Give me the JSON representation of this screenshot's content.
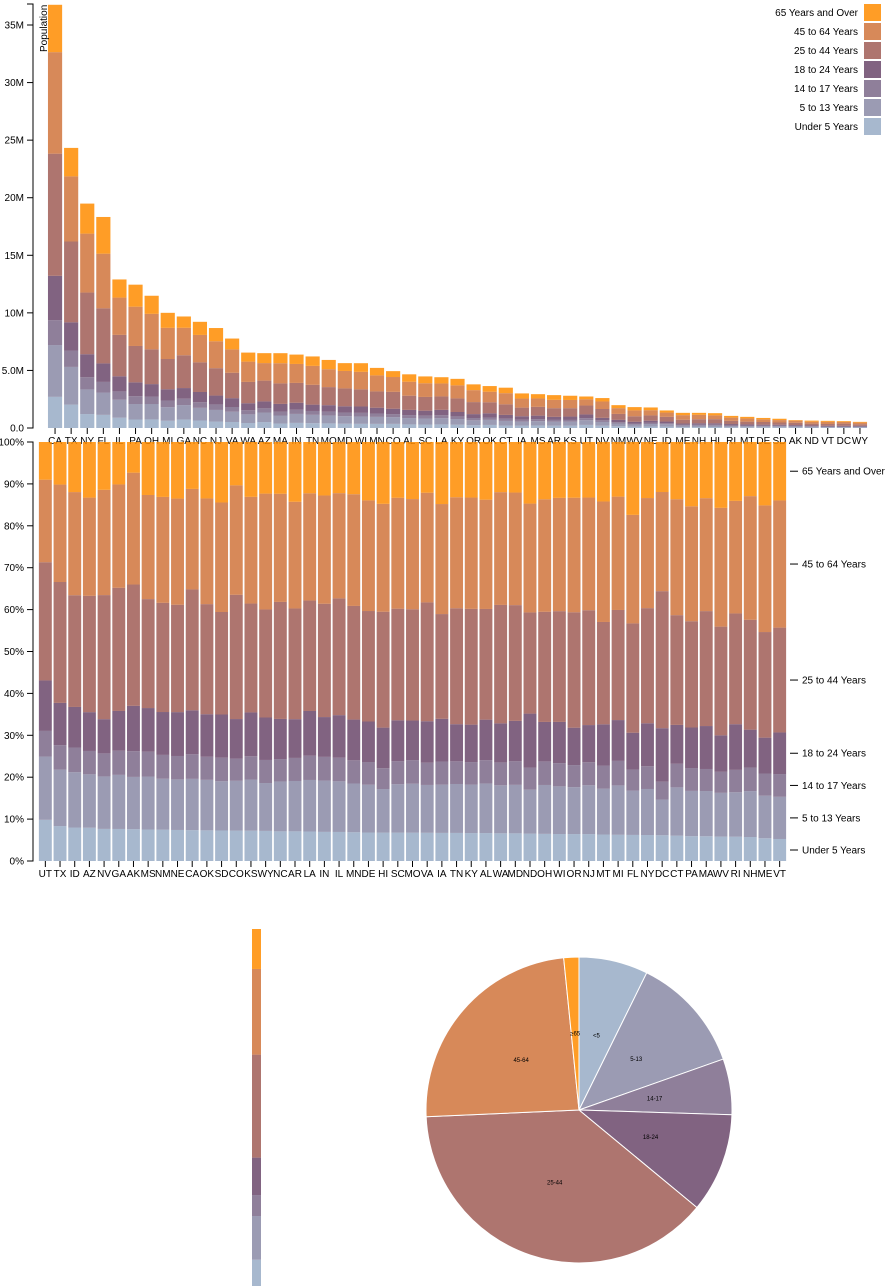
{
  "chart_data": [
    {
      "type": "bar",
      "stacked": true,
      "sort": "total-descending",
      "ylabel": "Population",
      "ylim": [
        0,
        36800000
      ],
      "yticks": [
        "0.0",
        "5.0M",
        "10M",
        "15M",
        "20M",
        "25M",
        "30M",
        "35M"
      ],
      "legend_position": "top-right",
      "keys": [
        "Under 5 Years",
        "5 to 13 Years",
        "14 to 17 Years",
        "18 to 24 Years",
        "25 to 44 Years",
        "45 to 64 Years",
        "65 Years and Over"
      ],
      "colors": [
        "#98abc5",
        "#8a89a6",
        "#7b6888",
        "#6b486b",
        "#a05d56",
        "#d0743c",
        "#ff8c00"
      ],
      "states": {
        "AL": [
          310504,
          552339,
          259034,
          450818,
          1231572,
          1215966,
          641667
        ],
        "AK": [
          52083,
          85640,
          42153,
          74257,
          198724,
          183159,
          50277
        ],
        "AZ": [
          515910,
          828669,
          362642,
          601943,
          1804762,
          1523681,
          862573
        ],
        "AR": [
          202070,
          343207,
          157204,
          264160,
          754420,
          727124,
          407205
        ],
        "CA": [
          2704659,
          4499890,
          2159981,
          3853788,
          10604510,
          8819342,
          4114496
        ],
        "CO": [
          358280,
          587154,
          261701,
          466194,
          1464939,
          1290094,
          511094
        ],
        "CT": [
          211637,
          403658,
          196918,
          325110,
          916955,
          968967,
          478007
        ],
        "DE": [
          59319,
          99496,
          47414,
          84464,
          230183,
          230528,
          121688
        ],
        "DC": [
          36352,
          50439,
          25225,
          75569,
          193557,
          140043,
          70648
        ],
        "FL": [
          1140516,
          1938695,
          925060,
          1607297,
          4782119,
          4746856,
          3187797
        ],
        "GA": [
          740521,
          1250460,
          557860,
          919876,
          2846985,
          2389018,
          981024
        ],
        "HI": [
          87207,
          134025,
          64011,
          124834,
          356237,
          331817,
          190067
        ],
        "ID": [
          121746,
          201192,
          89702,
          147606,
          406247,
          375173,
          182150
        ],
        "IL": [
          894368,
          1558919,
          725973,
          1311479,
          3596343,
          3239173,
          1575308
        ],
        "IN": [
          443089,
          780199,
          361393,
          605863,
          1724528,
          1647881,
          813839
        ],
        "IA": [
          201321,
          345409,
          165883,
          306398,
          750505,
          788485,
          444554
        ],
        "KS": [
          202529,
          342134,
          155822,
          293114,
          728166,
          713663,
          366706
        ],
        "KY": [
          284601,
          493536,
          229927,
          381394,
          1179637,
          1134283,
          565867
        ],
        "LA": [
          310716,
          542341,
          254916,
          471275,
          1162463,
          1128771,
          540314
        ],
        "ME": [
          71459,
          133656,
          69752,
          112682,
          331809,
          397911,
          199187
        ],
        "MD": [
          371787,
          651923,
          316873,
          543470,
          1556225,
          1513754,
          679565
        ],
        "MA": [
          383568,
          701752,
          341713,
          665879,
          1782449,
          1751508,
          871098
        ],
        "MI": [
          625526,
          1179503,
          585169,
          974480,
          2628322,
          2706100,
          1304322
        ],
        "MN": [
          358471,
          606802,
          289371,
          507289,
          1416063,
          1391878,
          650519
        ],
        "MS": [
          220813,
          371502,
          174405,
          305964,
          764203,
          730133,
          371598
        ],
        "MO": [
          399450,
          690476,
          331543,
          560463,
          1569626,
          1554812,
          805235
        ],
        "MT": [
          61114,
          106088,
          53156,
          95232,
          236297,
          278241,
          137312
        ],
        "NE": [
          132092,
          215265,
          99638,
          186657,
          457177,
          451756,
          240847
        ],
        "NV": [
          199175,
          325650,
          142976,
          212379,
          769913,
          653357,
          296717
        ],
        "NH": [
          75297,
          144235,
          73826,
          119114,
          345109,
          388250,
          169978
        ],
        "NJ": [
          557421,
          1011656,
          478505,
          769321,
          2379649,
          2335168,
          1150941
        ],
        "NM": [
          148323,
          241326,
          112801,
          203097,
          517154,
          501604,
          260051
        ],
        "NY": [
          1208495,
          2141490,
          1058031,
          1999120,
          5355235,
          5120254,
          2607672
        ],
        "NC": [
          652823,
          1097890,
          492964,
          883397,
          2575603,
          2380685,
          1139052
        ],
        "ND": [
          41896,
          67358,
          33794,
          82629,
          154913,
          166615,
          94276
        ],
        "OH": [
          743750,
          1340492,
          646135,
          1081734,
          3019147,
          3083815,
          1570837
        ],
        "OK": [
          266547,
          438926,
          200562,
          369916,
          957085,
          918688,
          490637
        ],
        "OR": [
          243483,
          424167,
          199925,
          338162,
          1044056,
          1036269,
          503998
        ],
        "PA": [
          737462,
          1345341,
          679201,
          1203944,
          3157759,
          3414001,
          1910571
        ],
        "RI": [
          60934,
          111408,
          56198,
          114502,
          277779,
          282321,
          147646
        ],
        "SC": [
          303024,
          517803,
          245400,
          438147,
          1193112,
          1186019,
          596295
        ],
        "SD": [
          58566,
          94438,
          45305,
          82869,
          196738,
          210178,
          116100
        ],
        "TN": [
          416334,
          725948,
          336312,
          550612,
          1719433,
          1646623,
          819626
        ],
        "TX": [
          2027307,
          3277946,
          1420518,
          2454721,
          7017731,
          5656528,
          2472223
        ],
        "UT": [
          268916,
          413034,
          167685,
          329585,
          772024,
          538978,
          246202
        ],
        "VT": [
          32635,
          62538,
          33757,
          61679,
          155419,
          188593,
          86649
        ],
        "VA": [
          522672,
          887525,
          413004,
          768475,
          2203286,
          2033550,
          940577
        ],
        "WA": [
          433119,
          750274,
          357782,
          610378,
          1850983,
          1762811,
          783877
        ],
        "WV": [
          105435,
          189649,
          91074,
          157989,
          470749,
          514505,
          285067
        ],
        "WI": [
          362277,
          640286,
          311849,
          553914,
          1487457,
          1522038,
          750146
        ],
        "WY": [
          38253,
          60890,
          29314,
          53980,
          137338,
          147279,
          65614
        ]
      }
    },
    {
      "type": "bar",
      "stacked": true,
      "normalized": true,
      "sort": "under-5-share-descending",
      "ylim": [
        0,
        100
      ],
      "yticks": [
        "0%",
        "10%",
        "20%",
        "30%",
        "40%",
        "50%",
        "60%",
        "70%",
        "80%",
        "90%",
        "100%"
      ],
      "legend_position": "right, inline"
    },
    {
      "type": "bar",
      "stacked": true,
      "category": "CA",
      "orientation": "single-column"
    },
    {
      "type": "pie",
      "labels": [
        "<5",
        "5-13",
        "14-17",
        "18-24",
        "25-44",
        "45-64",
        "≥65"
      ],
      "values_percent": [
        7.3,
        12.3,
        5.9,
        10.5,
        38.3,
        24.1,
        1.6
      ]
    }
  ]
}
